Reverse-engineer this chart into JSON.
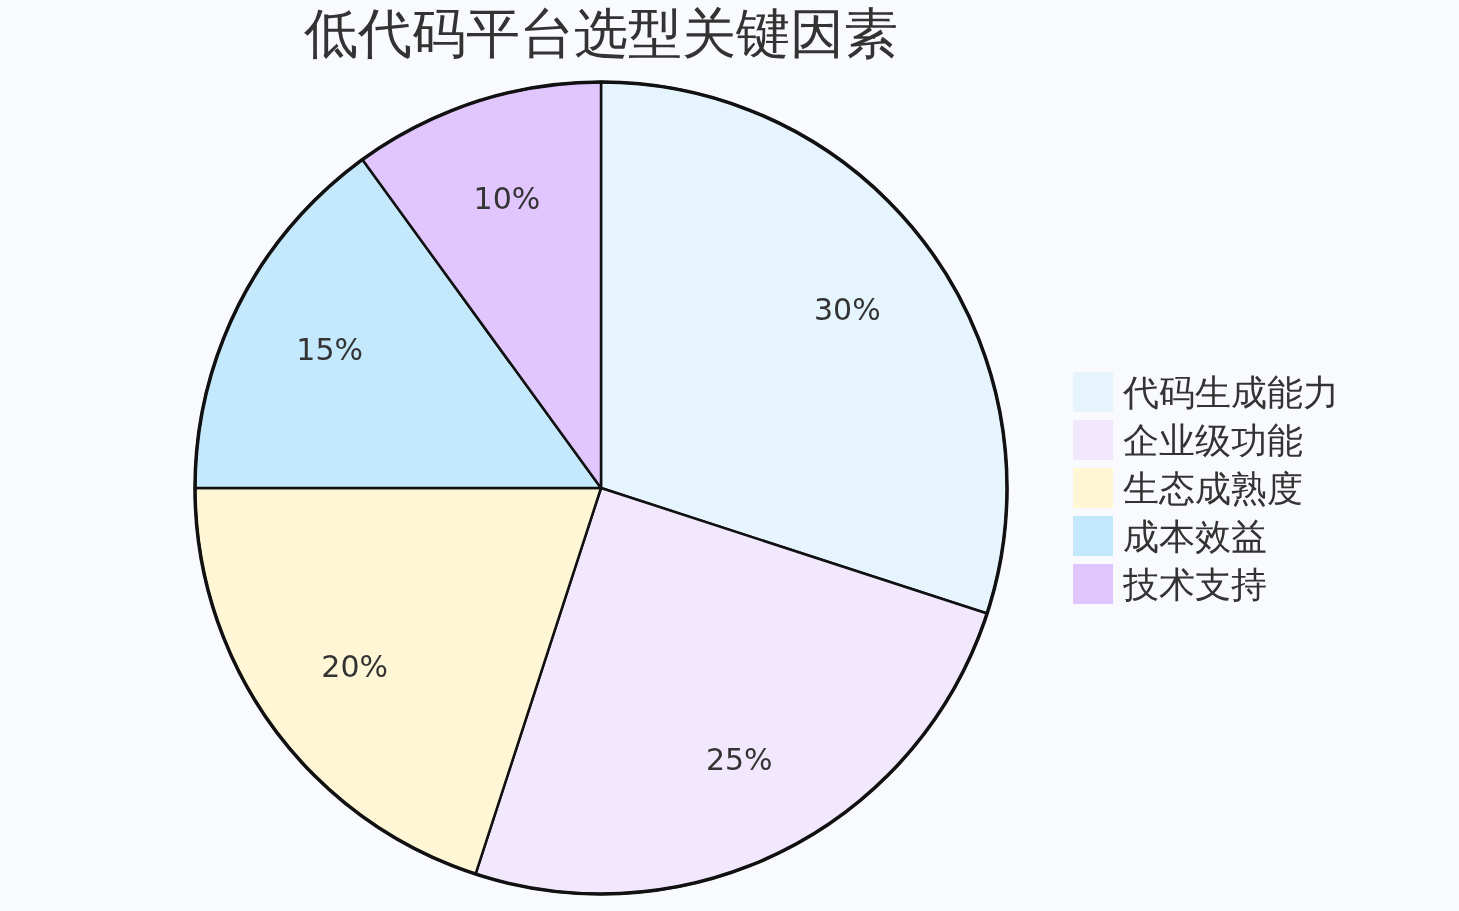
{
  "chart_data": {
    "type": "pie",
    "title": "低代码平台选型关键因素",
    "categories": [
      "代码生成能力",
      "企业级功能",
      "生态成熟度",
      "成本效益",
      "技术支持"
    ],
    "values": [
      30,
      25,
      20,
      15,
      10
    ],
    "value_labels": [
      "30%",
      "25%",
      "20%",
      "15%",
      "10%"
    ],
    "colors": [
      "#e6f4fe",
      "#f2e8fd",
      "#fef6d4",
      "#c4e8fc",
      "#e0c6fc"
    ],
    "legend": "right"
  }
}
